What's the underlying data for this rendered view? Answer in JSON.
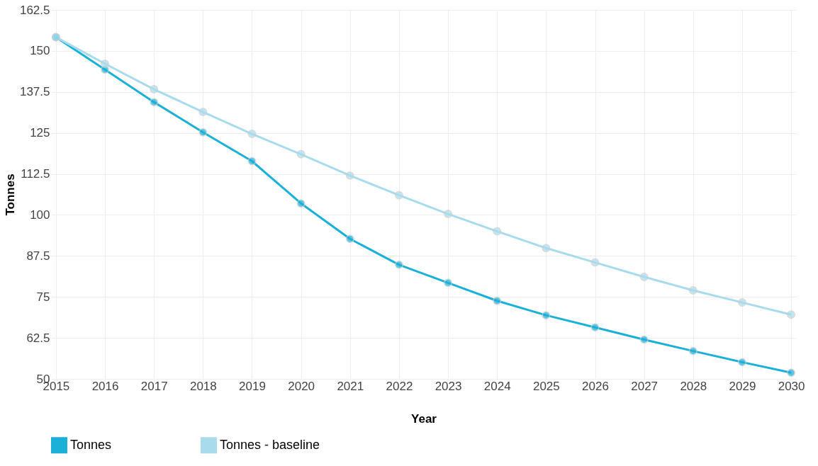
{
  "chart_data": {
    "type": "line",
    "xlabel": "Year",
    "ylabel": "Tonnes",
    "categories": [
      "2015",
      "2016",
      "2017",
      "2018",
      "2019",
      "2020",
      "2021",
      "2022",
      "2023",
      "2024",
      "2025",
      "2026",
      "2027",
      "2028",
      "2029",
      "2030"
    ],
    "series": [
      {
        "name": "Tonnes",
        "color": "#1ab0d8",
        "values": [
          154.2,
          144.3,
          134.4,
          125.2,
          116.4,
          103.5,
          92.7,
          84.8,
          79.3,
          73.8,
          69.4,
          65.7,
          62.0,
          58.5,
          55.1,
          51.9
        ]
      },
      {
        "name": "Tonnes - baseline",
        "color": "#a8dcec",
        "values": [
          154.2,
          146.1,
          138.3,
          131.4,
          124.7,
          118.5,
          112.0,
          106.0,
          100.3,
          95.0,
          89.9,
          85.5,
          81.1,
          77.0,
          73.3,
          69.6
        ]
      }
    ],
    "ylim": [
      50,
      162.5
    ],
    "yticks": [
      50,
      62.5,
      75,
      87.5,
      100,
      112.5,
      125,
      137.5,
      150,
      162.5
    ],
    "grid": true,
    "legend": "bottom",
    "marker": "circle",
    "line_style": "solid"
  }
}
